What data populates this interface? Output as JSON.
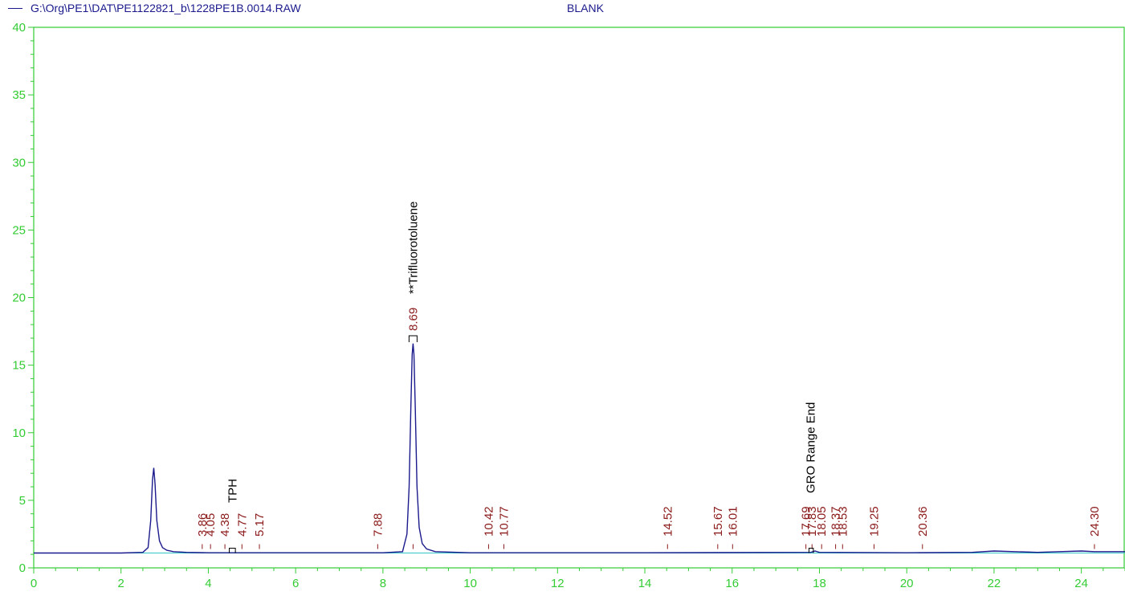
{
  "header": {
    "file_path": "G:\\Org\\PE1\\DAT\\PE1122821_b\\1228PE1B.0014.RAW",
    "sample_name": "BLANK"
  },
  "colors": {
    "axis": "#33cc33",
    "trace": "#1a1a8c",
    "baseline": "#33c6c6",
    "peak_label": "#8b1a1a",
    "compound_label": "#000000"
  },
  "chart_data": {
    "type": "line",
    "title": "",
    "xlabel": "",
    "ylabel": "",
    "xlim": [
      0,
      25
    ],
    "ylim": [
      0,
      40
    ],
    "x_ticks": [
      "0",
      "2",
      "4",
      "6",
      "8",
      "10",
      "12",
      "14",
      "16",
      "18",
      "20",
      "22",
      "24"
    ],
    "y_ticks": [
      "0",
      "5",
      "10",
      "15",
      "20",
      "25",
      "30",
      "35",
      "40"
    ],
    "grid": false,
    "baseline_level": 1.1,
    "series": [
      {
        "x": [
          0,
          2.0,
          2.5,
          2.62,
          2.68,
          2.72,
          2.75,
          2.78,
          2.82,
          2.88,
          2.95,
          3.05,
          3.2,
          3.5,
          4.0,
          6.0,
          8.0,
          8.45,
          8.55,
          8.6,
          8.64,
          8.67,
          8.69,
          8.71,
          8.74,
          8.78,
          8.83,
          8.9,
          9.0,
          9.2,
          10.0,
          14.0,
          17.8,
          17.9,
          18.0,
          20.0,
          21.5,
          22.0,
          23.0,
          23.5,
          24.0,
          24.3,
          25.0
        ],
        "y": [
          1.1,
          1.1,
          1.15,
          1.5,
          3.5,
          6.5,
          7.4,
          6.2,
          3.5,
          2.0,
          1.5,
          1.3,
          1.2,
          1.15,
          1.12,
          1.12,
          1.12,
          1.2,
          2.5,
          6.0,
          12.0,
          15.8,
          16.6,
          15.8,
          12.0,
          6.0,
          3.0,
          1.8,
          1.4,
          1.2,
          1.12,
          1.12,
          1.15,
          1.25,
          1.15,
          1.12,
          1.15,
          1.25,
          1.15,
          1.2,
          1.25,
          1.2,
          1.2
        ]
      }
    ],
    "peak_labels": [
      {
        "rt": 3.86,
        "text": "3.86"
      },
      {
        "rt": 4.05,
        "text": "4.05"
      },
      {
        "rt": 4.38,
        "text": "4.38"
      },
      {
        "rt": 4.77,
        "text": "4.77"
      },
      {
        "rt": 5.17,
        "text": "5.17"
      },
      {
        "rt": 7.88,
        "text": "7.88"
      },
      {
        "rt": 8.69,
        "text": "8.69"
      },
      {
        "rt": 10.42,
        "text": "10.42"
      },
      {
        "rt": 10.77,
        "text": "10.77"
      },
      {
        "rt": 14.52,
        "text": "14.52"
      },
      {
        "rt": 15.67,
        "text": "15.67"
      },
      {
        "rt": 16.01,
        "text": "16.01"
      },
      {
        "rt": 17.69,
        "text": "17.69"
      },
      {
        "rt": 17.83,
        "text": "17.83"
      },
      {
        "rt": 18.05,
        "text": "18.05"
      },
      {
        "rt": 18.37,
        "text": "18.37"
      },
      {
        "rt": 18.53,
        "text": "18.53"
      },
      {
        "rt": 19.25,
        "text": "19.25"
      },
      {
        "rt": 20.36,
        "text": "20.36"
      },
      {
        "rt": 24.3,
        "text": "24.30"
      }
    ],
    "compound_labels": [
      {
        "rt": 4.55,
        "text": "TPH"
      },
      {
        "rt": 8.69,
        "text": "**Trifluorotoluene"
      },
      {
        "rt": 17.8,
        "text": "GRO Range End"
      }
    ]
  }
}
